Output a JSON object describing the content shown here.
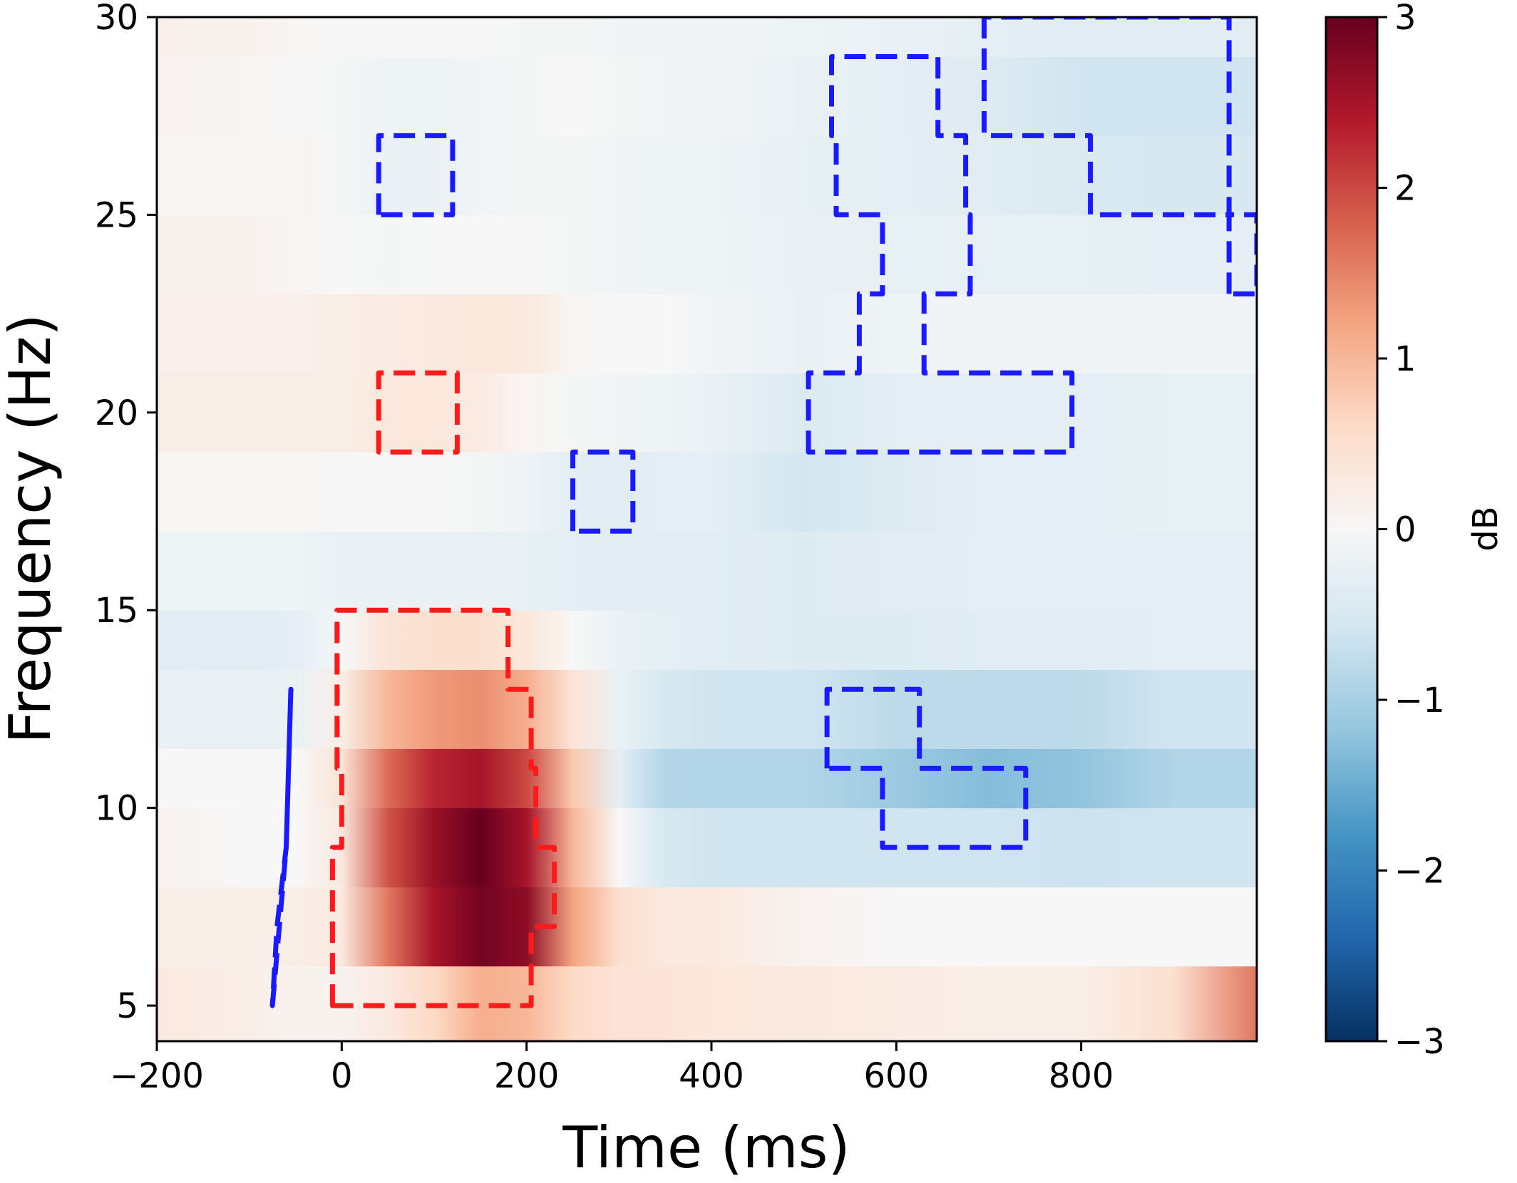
{
  "chart_data": {
    "type": "heatmap",
    "title": "",
    "xlabel": "Time (ms)",
    "ylabel": "Frequency (Hz)",
    "xlim": [
      -200,
      990
    ],
    "ylim": [
      4.1,
      30
    ],
    "xticks": [
      -200,
      0,
      200,
      400,
      600,
      800
    ],
    "xtick_labels": [
      "−200",
      "0",
      "200",
      "400",
      "600",
      "800"
    ],
    "yticks": [
      5,
      10,
      15,
      20,
      25,
      30
    ],
    "ytick_labels": [
      "5",
      "10",
      "15",
      "20",
      "25",
      "30"
    ],
    "colorbar": {
      "label": "dB",
      "colormap": "RdBu_r",
      "vmin": -3,
      "vmax": 3,
      "ticks": [
        -3,
        -2,
        -1,
        0,
        1,
        2,
        3
      ],
      "tick_labels": [
        "−3",
        "−2",
        "−1",
        "0",
        "1",
        "2",
        "3"
      ],
      "colors": [
        "#053061",
        "#2166ac",
        "#4393c3",
        "#92c5de",
        "#d1e5f0",
        "#f7f7f7",
        "#fddbc7",
        "#f4a582",
        "#d6604d",
        "#b2182b",
        "#67001f"
      ]
    },
    "x_samples": [
      -200,
      -100,
      -50,
      0,
      50,
      100,
      150,
      200,
      250,
      300,
      350,
      400,
      500,
      600,
      700,
      800,
      900,
      990
    ],
    "rows": [
      {
        "freq_range": [
          4.1,
          6
        ],
        "values": [
          0.3,
          0.2,
          0.1,
          0.1,
          0.3,
          0.6,
          1.1,
          1.0,
          0.6,
          0.4,
          0.4,
          0.35,
          0.3,
          0.25,
          0.2,
          0.2,
          0.5,
          1.6
        ]
      },
      {
        "freq_range": [
          6,
          8
        ],
        "values": [
          0.2,
          0.2,
          0.2,
          0.3,
          1.6,
          2.5,
          2.9,
          2.7,
          1.2,
          0.5,
          0.3,
          0.3,
          0.1,
          0.0,
          0.0,
          0.0,
          0.0,
          0.0
        ]
      },
      {
        "freq_range": [
          8,
          10
        ],
        "values": [
          0.1,
          0.0,
          0.0,
          0.3,
          1.9,
          2.6,
          3.0,
          2.5,
          1.0,
          0.0,
          -0.5,
          -0.6,
          -0.6,
          -0.6,
          -0.6,
          -0.65,
          -0.6,
          -0.6
        ]
      },
      {
        "freq_range": [
          10,
          11.5
        ],
        "values": [
          0.0,
          0.0,
          0.0,
          0.4,
          1.7,
          2.3,
          2.5,
          2.0,
          0.8,
          -0.3,
          -0.9,
          -0.9,
          -0.9,
          -1.1,
          -1.3,
          -1.2,
          -0.9,
          -0.9
        ]
      },
      {
        "freq_range": [
          11.5,
          13.5
        ],
        "values": [
          -0.2,
          -0.25,
          -0.2,
          0.2,
          1.0,
          1.3,
          1.4,
          1.1,
          0.4,
          -0.2,
          -0.5,
          -0.6,
          -0.6,
          -0.8,
          -0.8,
          -0.8,
          -0.6,
          -0.6
        ]
      },
      {
        "freq_range": [
          13.5,
          15
        ],
        "values": [
          -0.35,
          -0.35,
          -0.3,
          -0.05,
          0.4,
          0.5,
          0.5,
          0.35,
          0.0,
          -0.2,
          -0.3,
          -0.35,
          -0.4,
          -0.4,
          -0.35,
          -0.35,
          -0.3,
          -0.3
        ]
      },
      {
        "freq_range": [
          15,
          17
        ],
        "values": [
          -0.15,
          -0.15,
          -0.15,
          -0.2,
          -0.2,
          -0.2,
          -0.2,
          -0.25,
          -0.3,
          -0.35,
          -0.35,
          -0.35,
          -0.4,
          -0.35,
          -0.3,
          -0.3,
          -0.3,
          -0.3
        ]
      },
      {
        "freq_range": [
          17,
          19
        ],
        "values": [
          0.05,
          0.05,
          0.05,
          0.0,
          0.0,
          0.0,
          -0.05,
          -0.15,
          -0.3,
          -0.35,
          -0.3,
          -0.3,
          -0.55,
          -0.4,
          -0.3,
          -0.3,
          -0.25,
          -0.25
        ]
      },
      {
        "freq_range": [
          19,
          21
        ],
        "values": [
          0.2,
          0.2,
          0.2,
          0.2,
          0.35,
          0.35,
          0.25,
          0.05,
          -0.05,
          -0.1,
          -0.15,
          -0.2,
          -0.45,
          -0.3,
          -0.3,
          -0.3,
          -0.25,
          -0.25
        ]
      },
      {
        "freq_range": [
          21,
          23
        ],
        "values": [
          0.15,
          0.15,
          0.15,
          0.2,
          0.25,
          0.3,
          0.35,
          0.3,
          0.05,
          0.0,
          0.0,
          -0.1,
          -0.2,
          -0.15,
          -0.1,
          -0.1,
          -0.1,
          -0.1
        ]
      },
      {
        "freq_range": [
          23,
          25
        ],
        "values": [
          0.1,
          0.1,
          0.05,
          0.0,
          -0.05,
          0.0,
          0.0,
          0.0,
          -0.05,
          -0.1,
          -0.15,
          -0.15,
          -0.2,
          -0.25,
          -0.25,
          -0.25,
          -0.3,
          -0.3
        ]
      },
      {
        "freq_range": [
          25,
          27
        ],
        "values": [
          0.05,
          0.05,
          0.05,
          -0.05,
          -0.2,
          -0.2,
          -0.1,
          -0.05,
          -0.05,
          -0.1,
          -0.15,
          -0.15,
          -0.25,
          -0.3,
          -0.35,
          -0.45,
          -0.5,
          -0.5
        ]
      },
      {
        "freq_range": [
          27,
          29
        ],
        "values": [
          0.1,
          0.05,
          0.0,
          -0.05,
          -0.15,
          -0.15,
          -0.1,
          -0.05,
          0.0,
          -0.05,
          -0.1,
          -0.1,
          -0.2,
          -0.3,
          -0.4,
          -0.6,
          -0.6,
          -0.6
        ]
      },
      {
        "freq_range": [
          29,
          30
        ],
        "values": [
          0.15,
          0.1,
          0.05,
          0.0,
          0.0,
          0.0,
          0.0,
          -0.05,
          -0.05,
          -0.1,
          -0.1,
          -0.1,
          -0.15,
          -0.2,
          -0.3,
          -0.35,
          -0.35,
          -0.35
        ]
      }
    ],
    "significance_contours": [
      {
        "color": "#ff1a1a",
        "points": [
          [
            -10,
            5
          ],
          [
            -10,
            9
          ],
          [
            0,
            9
          ],
          [
            0,
            11
          ],
          [
            -5,
            11
          ],
          [
            -5,
            15
          ],
          [
            180,
            15
          ],
          [
            180,
            13
          ],
          [
            205,
            13
          ],
          [
            205,
            11
          ],
          [
            210,
            11
          ],
          [
            210,
            9
          ],
          [
            230,
            9
          ],
          [
            230,
            7
          ],
          [
            205,
            7
          ],
          [
            205,
            5
          ]
        ]
      },
      {
        "color": "#ff1a1a",
        "points": [
          [
            40,
            19
          ],
          [
            40,
            21
          ],
          [
            125,
            21
          ],
          [
            125,
            19
          ]
        ]
      },
      {
        "color": "#1a1aff",
        "points": [
          [
            -75,
            5
          ],
          [
            -60,
            9
          ],
          [
            -55,
            13
          ],
          [
            -60,
            9
          ],
          [
            -70,
            7
          ],
          [
            -75,
            5
          ]
        ]
      },
      {
        "color": "#1a1aff",
        "points": [
          [
            40,
            25
          ],
          [
            40,
            27
          ],
          [
            120,
            27
          ],
          [
            120,
            25
          ]
        ]
      },
      {
        "color": "#1a1aff",
        "points": [
          [
            250,
            17
          ],
          [
            250,
            19
          ],
          [
            315,
            19
          ],
          [
            315,
            17
          ]
        ]
      },
      {
        "color": "#1a1aff",
        "points": [
          [
            505,
            19
          ],
          [
            505,
            21
          ],
          [
            560,
            21
          ],
          [
            560,
            23
          ],
          [
            585,
            23
          ],
          [
            585,
            25
          ],
          [
            535,
            25
          ],
          [
            535,
            27
          ],
          [
            530,
            27
          ],
          [
            530,
            29
          ],
          [
            645,
            29
          ],
          [
            645,
            27
          ],
          [
            675,
            27
          ],
          [
            675,
            25
          ],
          [
            680,
            25
          ],
          [
            680,
            23
          ],
          [
            630,
            23
          ],
          [
            630,
            21
          ],
          [
            790,
            21
          ],
          [
            790,
            19
          ]
        ]
      },
      {
        "color": "#1a1aff",
        "points": [
          [
            695,
            30
          ],
          [
            695,
            27
          ],
          [
            810,
            27
          ],
          [
            810,
            25
          ],
          [
            960,
            25
          ],
          [
            960,
            30
          ]
        ]
      },
      {
        "color": "#1a1aff",
        "points": [
          [
            960,
            23
          ],
          [
            960,
            25
          ],
          [
            990,
            25
          ],
          [
            990,
            23
          ]
        ]
      },
      {
        "color": "#1a1aff",
        "points": [
          [
            525,
            11
          ],
          [
            525,
            13
          ],
          [
            625,
            13
          ],
          [
            625,
            11
          ],
          [
            740,
            11
          ],
          [
            740,
            9
          ],
          [
            585,
            9
          ],
          [
            585,
            11
          ]
        ]
      }
    ]
  }
}
